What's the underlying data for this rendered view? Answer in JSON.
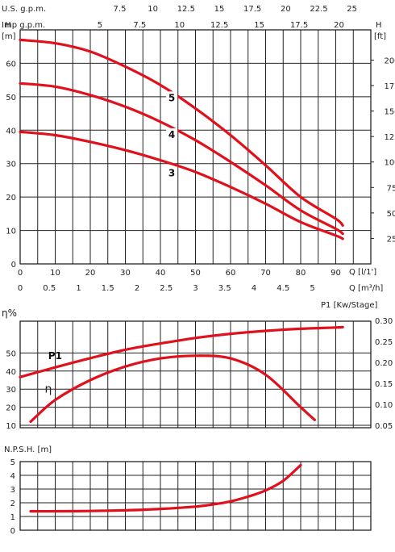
{
  "chart_data": [
    {
      "type": "line",
      "ylabel_left": "H",
      "ylabel_left_unit": "[m]",
      "ylabel_right": "H",
      "ylabel_right_unit": "[ft]",
      "xlabel_lps": "Q [l/1']",
      "xlabel_m3h": "Q [m³/h]",
      "top_axis_us_label": "U.S. g.p.m.",
      "top_axis_imp_label": "Imp g.p.m.",
      "x_lpm_ticks": [
        "0",
        "10",
        "20",
        "30",
        "40",
        "50",
        "60",
        "70",
        "80",
        "90"
      ],
      "x_m3h_ticks": [
        "0",
        "0.5",
        "1",
        "1.5",
        "2",
        "2.5",
        "3",
        "3.5",
        "4",
        "4.5",
        "5"
      ],
      "x_us_gpm_ticks": [
        "7.5",
        "10",
        "12.5",
        "15",
        "17.5",
        "20",
        "22.5",
        "25"
      ],
      "x_imp_gpm_ticks": [
        "5",
        "7.5",
        "10",
        "12.5",
        "15",
        "17.5",
        "20"
      ],
      "y_m_ticks": [
        "0",
        "10",
        "20",
        "30",
        "40",
        "50",
        "60"
      ],
      "y_ft_ticks": [
        "25",
        "50",
        "75",
        "100",
        "125",
        "150",
        "175",
        "200"
      ],
      "xlim_lpm": [
        0,
        100
      ],
      "ylim_m": [
        0,
        70
      ],
      "grid": true,
      "series": [
        {
          "name": "5",
          "x": [
            0,
            10,
            20,
            30,
            40,
            50,
            60,
            70,
            80,
            90,
            92
          ],
          "y": [
            67,
            66,
            63.5,
            59,
            53.5,
            46.5,
            38.5,
            29.5,
            20,
            13.5,
            11.5
          ]
        },
        {
          "name": "4",
          "x": [
            0,
            10,
            20,
            30,
            40,
            50,
            60,
            70,
            80,
            90,
            92
          ],
          "y": [
            54,
            53,
            50.5,
            47,
            42.5,
            37,
            30.5,
            23.5,
            16,
            10.5,
            9
          ]
        },
        {
          "name": "3",
          "x": [
            0,
            10,
            20,
            30,
            40,
            50,
            60,
            70,
            80,
            90,
            92
          ],
          "y": [
            39.5,
            38.5,
            36.5,
            34,
            31,
            27.5,
            23,
            18,
            12.5,
            8.5,
            7.5
          ]
        }
      ]
    },
    {
      "type": "line",
      "ylabel_left": "η%",
      "ylabel_right": "P1 [Kw/Stage]",
      "y_left_ticks": [
        "10",
        "20",
        "30",
        "40",
        "50"
      ],
      "y_right_ticks": [
        "0.05",
        "0.10",
        "0.15",
        "0.20",
        "0.25",
        "0.30"
      ],
      "xlim_lpm": [
        0,
        100
      ],
      "ylim_eta": [
        10,
        60
      ],
      "ylim_p1": [
        0.05,
        0.3
      ],
      "grid": true,
      "series": [
        {
          "name": "P1",
          "axis": "right",
          "x": [
            0,
            10,
            20,
            30,
            40,
            50,
            60,
            70,
            80,
            90,
            92
          ],
          "y": [
            0.165,
            0.188,
            0.21,
            0.23,
            0.245,
            0.258,
            0.268,
            0.275,
            0.28,
            0.283,
            0.284
          ]
        },
        {
          "name": "η",
          "axis": "left",
          "x": [
            3,
            10,
            20,
            30,
            40,
            50,
            60,
            70,
            80,
            84
          ],
          "y": [
            12,
            24,
            35,
            42.5,
            47,
            48.5,
            47,
            38,
            20,
            13
          ]
        }
      ]
    },
    {
      "type": "line",
      "ylabel": "N.P.S.H. [m]",
      "y_ticks": [
        "0",
        "1",
        "2",
        "3",
        "4",
        "5"
      ],
      "xlim_lpm": [
        0,
        100
      ],
      "ylim": [
        0,
        5
      ],
      "grid": true,
      "series": [
        {
          "x": [
            3,
            10,
            20,
            30,
            40,
            50,
            55,
            60,
            65,
            70,
            75,
            80
          ],
          "y": [
            1.38,
            1.38,
            1.4,
            1.45,
            1.55,
            1.72,
            1.88,
            2.1,
            2.45,
            2.9,
            3.6,
            4.75
          ]
        }
      ]
    }
  ]
}
